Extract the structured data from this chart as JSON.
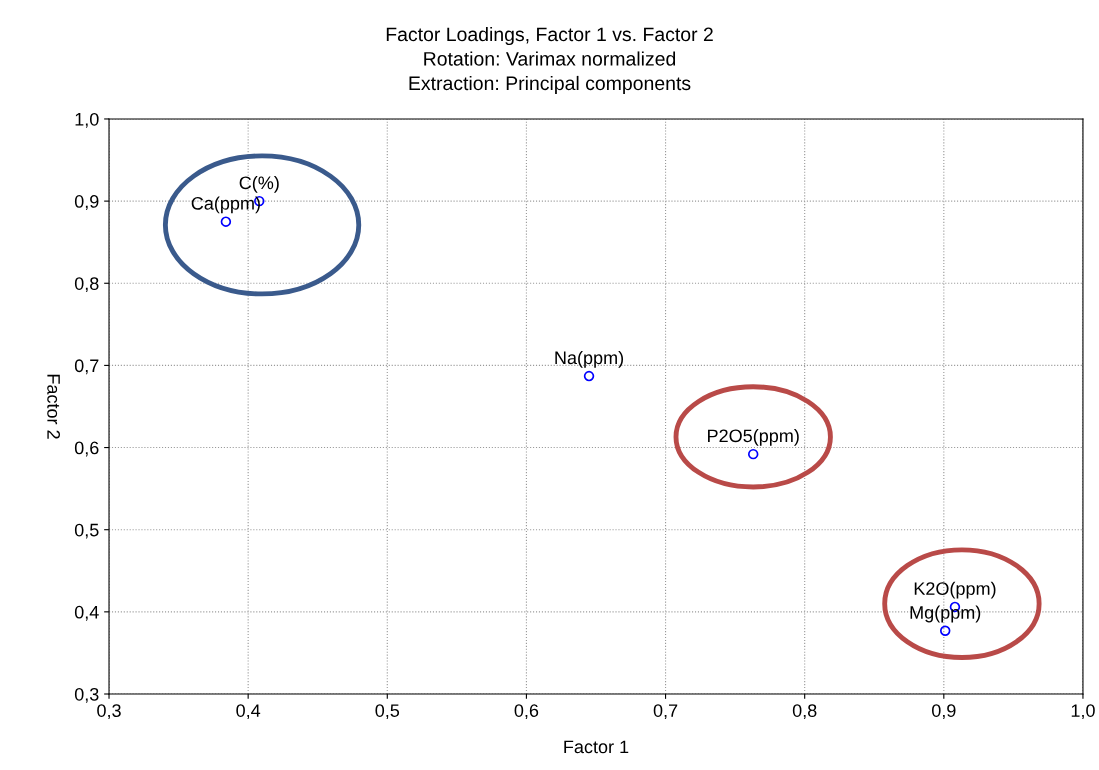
{
  "chart_data": {
    "type": "scatter",
    "title": "Factor Loadings, Factor 1 vs. Factor 2",
    "subtitle": "Rotation: Varimax normalized\nExtraction: Principal components",
    "xlabel": "Factor 1",
    "ylabel": "Factor 2",
    "x": [
      0.384,
      0.408,
      0.645,
      0.763,
      0.908,
      0.901
    ],
    "series": [
      {
        "color": "#0000ff",
        "values": [
          0.875,
          0.9,
          0.687,
          0.592,
          0.406,
          0.377
        ]
      }
    ],
    "annotations": [
      {
        "text": "Ca(ppm)",
        "x": 0.384,
        "y": 0.875
      },
      {
        "text": "C(%)",
        "x": 0.408,
        "y": 0.9
      },
      {
        "text": "Na(ppm)",
        "x": 0.645,
        "y": 0.687
      },
      {
        "text": "P2O5(ppm)",
        "x": 0.763,
        "y": 0.592
      },
      {
        "text": "K2O(ppm)",
        "x": 0.908,
        "y": 0.406
      },
      {
        "text": "Mg(ppm)",
        "x": 0.901,
        "y": 0.377
      }
    ],
    "xlim": [
      0.3,
      1.0
    ],
    "ylim": [
      0.3,
      1.0
    ],
    "xticks": [
      {
        "value": 0.3,
        "label": "0,3"
      },
      {
        "value": 0.4,
        "label": "0,4"
      },
      {
        "value": 0.5,
        "label": "0,5"
      },
      {
        "value": 0.6,
        "label": "0,6"
      },
      {
        "value": 0.7,
        "label": "0,7"
      },
      {
        "value": 0.8,
        "label": "0,8"
      },
      {
        "value": 0.9,
        "label": "0,9"
      },
      {
        "value": 1.0,
        "label": "1,0"
      }
    ],
    "yticks": [
      {
        "value": 0.3,
        "label": "0,3"
      },
      {
        "value": 0.4,
        "label": "0,4"
      },
      {
        "value": 0.5,
        "label": "0,5"
      },
      {
        "value": 0.6,
        "label": "0,6"
      },
      {
        "value": 0.7,
        "label": "0,7"
      },
      {
        "value": 0.8,
        "label": "0,8"
      },
      {
        "value": 0.9,
        "label": "0,9"
      },
      {
        "value": 1.0,
        "label": "1,0"
      }
    ],
    "grid": true,
    "marker": "circle"
  }
}
